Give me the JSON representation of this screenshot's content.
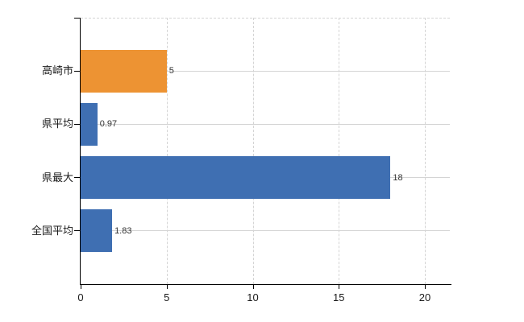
{
  "chart_data": {
    "type": "bar",
    "orientation": "horizontal",
    "title": "",
    "xlabel": "",
    "ylabel": "",
    "categories": [
      "高崎市",
      "県平均",
      "県最大",
      "全国平均"
    ],
    "values": [
      5,
      0.97,
      18,
      1.83
    ],
    "value_labels": [
      "5",
      "0.97",
      "18",
      "1.83"
    ],
    "bar_colors": [
      "#ED9333",
      "#3F6FB2",
      "#3F6FB2",
      "#3F6FB2"
    ],
    "x_ticks": [
      "0",
      "5",
      "10",
      "15",
      "20"
    ],
    "x_tick_values": [
      0,
      5,
      10,
      15,
      20
    ],
    "xlim": [
      0,
      21.45
    ],
    "grid": "on",
    "legend": "none",
    "colors": {
      "gridline": "#d4d4d4",
      "axis": "#000000",
      "value_label": "#333333",
      "tick_label": "#1a1a1a",
      "background": "#ffffff"
    }
  }
}
